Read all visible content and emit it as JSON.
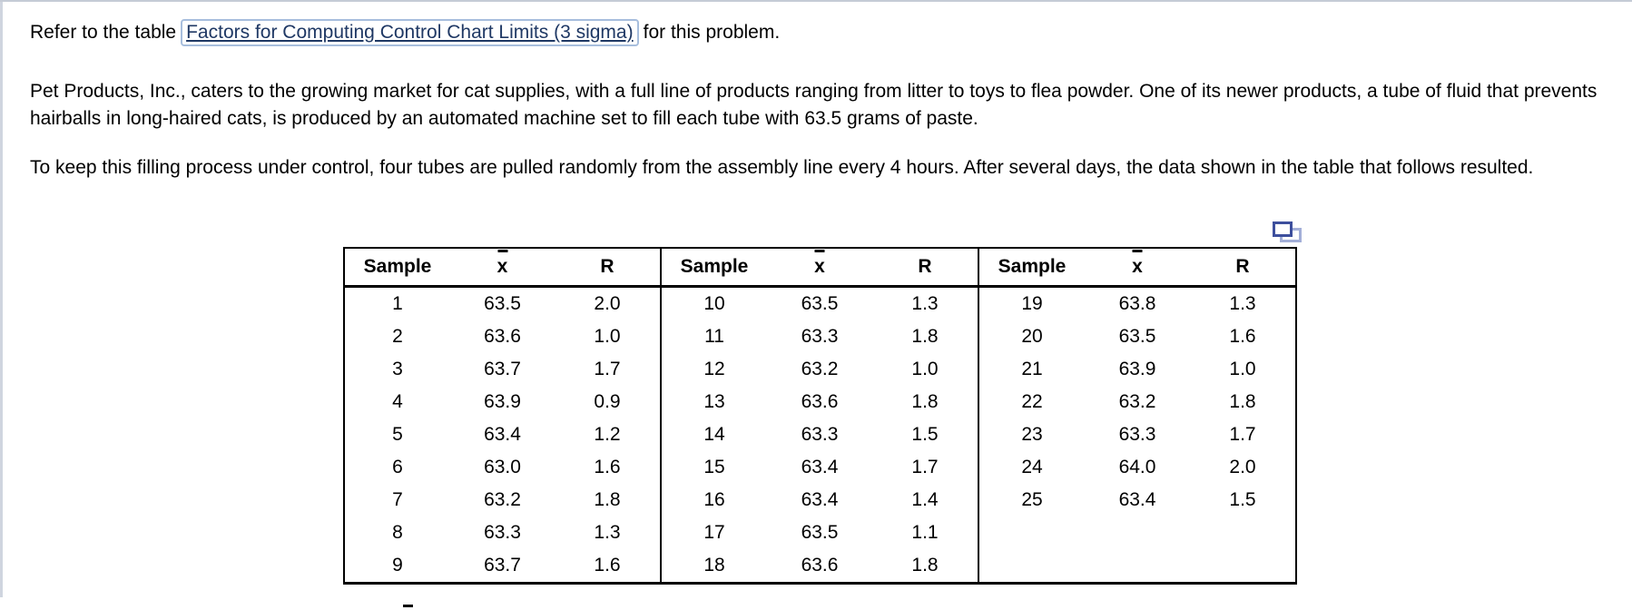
{
  "page": {
    "intro": {
      "prefix": "Refer to the table",
      "link_label": "Factors for Computing Control Chart Limits (3 sigma)",
      "suffix": "for this problem."
    },
    "paragraph1": "Pet Products, Inc., caters to the growing market for cat supplies, with a full line of products ranging from litter to toys to flea powder. One of its newer products, a tube of fluid that prevents hairballs in long-haired cats, is produced by an automated machine set to fill each tube with 63.5 grams of paste.",
    "paragraph2": "To keep this filling process under control, four tubes are pulled randomly from the assembly line every 4 hours. After several days, the data shown in the table that follows resulted.",
    "colors": {
      "link_text": "#1f3864",
      "link_box_border": "#a7bedd",
      "copy_icon_front": "#3d4f9d",
      "copy_icon_back": "#a3afd8",
      "table_lines": "#000000"
    },
    "icons": {
      "copy_icon": "copy-table-icon"
    }
  },
  "table": {
    "col_headers": [
      "Sample",
      "x",
      "R"
    ],
    "groups": [
      {
        "rows": [
          [
            "1",
            "63.5",
            "2.0"
          ],
          [
            "2",
            "63.6",
            "1.0"
          ],
          [
            "3",
            "63.7",
            "1.7"
          ],
          [
            "4",
            "63.9",
            "0.9"
          ],
          [
            "5",
            "63.4",
            "1.2"
          ],
          [
            "6",
            "63.0",
            "1.6"
          ],
          [
            "7",
            "63.2",
            "1.8"
          ],
          [
            "8",
            "63.3",
            "1.3"
          ],
          [
            "9",
            "63.7",
            "1.6"
          ]
        ]
      },
      {
        "rows": [
          [
            "10",
            "63.5",
            "1.3"
          ],
          [
            "11",
            "63.3",
            "1.8"
          ],
          [
            "12",
            "63.2",
            "1.0"
          ],
          [
            "13",
            "63.6",
            "1.8"
          ],
          [
            "14",
            "63.3",
            "1.5"
          ],
          [
            "15",
            "63.4",
            "1.7"
          ],
          [
            "16",
            "63.4",
            "1.4"
          ],
          [
            "17",
            "63.5",
            "1.1"
          ],
          [
            "18",
            "63.6",
            "1.8"
          ]
        ]
      },
      {
        "rows": [
          [
            "19",
            "63.8",
            "1.3"
          ],
          [
            "20",
            "63.5",
            "1.6"
          ],
          [
            "21",
            "63.9",
            "1.0"
          ],
          [
            "22",
            "63.2",
            "1.8"
          ],
          [
            "23",
            "63.3",
            "1.7"
          ],
          [
            "24",
            "64.0",
            "2.0"
          ],
          [
            "25",
            "63.4",
            "1.5"
          ]
        ]
      }
    ]
  }
}
